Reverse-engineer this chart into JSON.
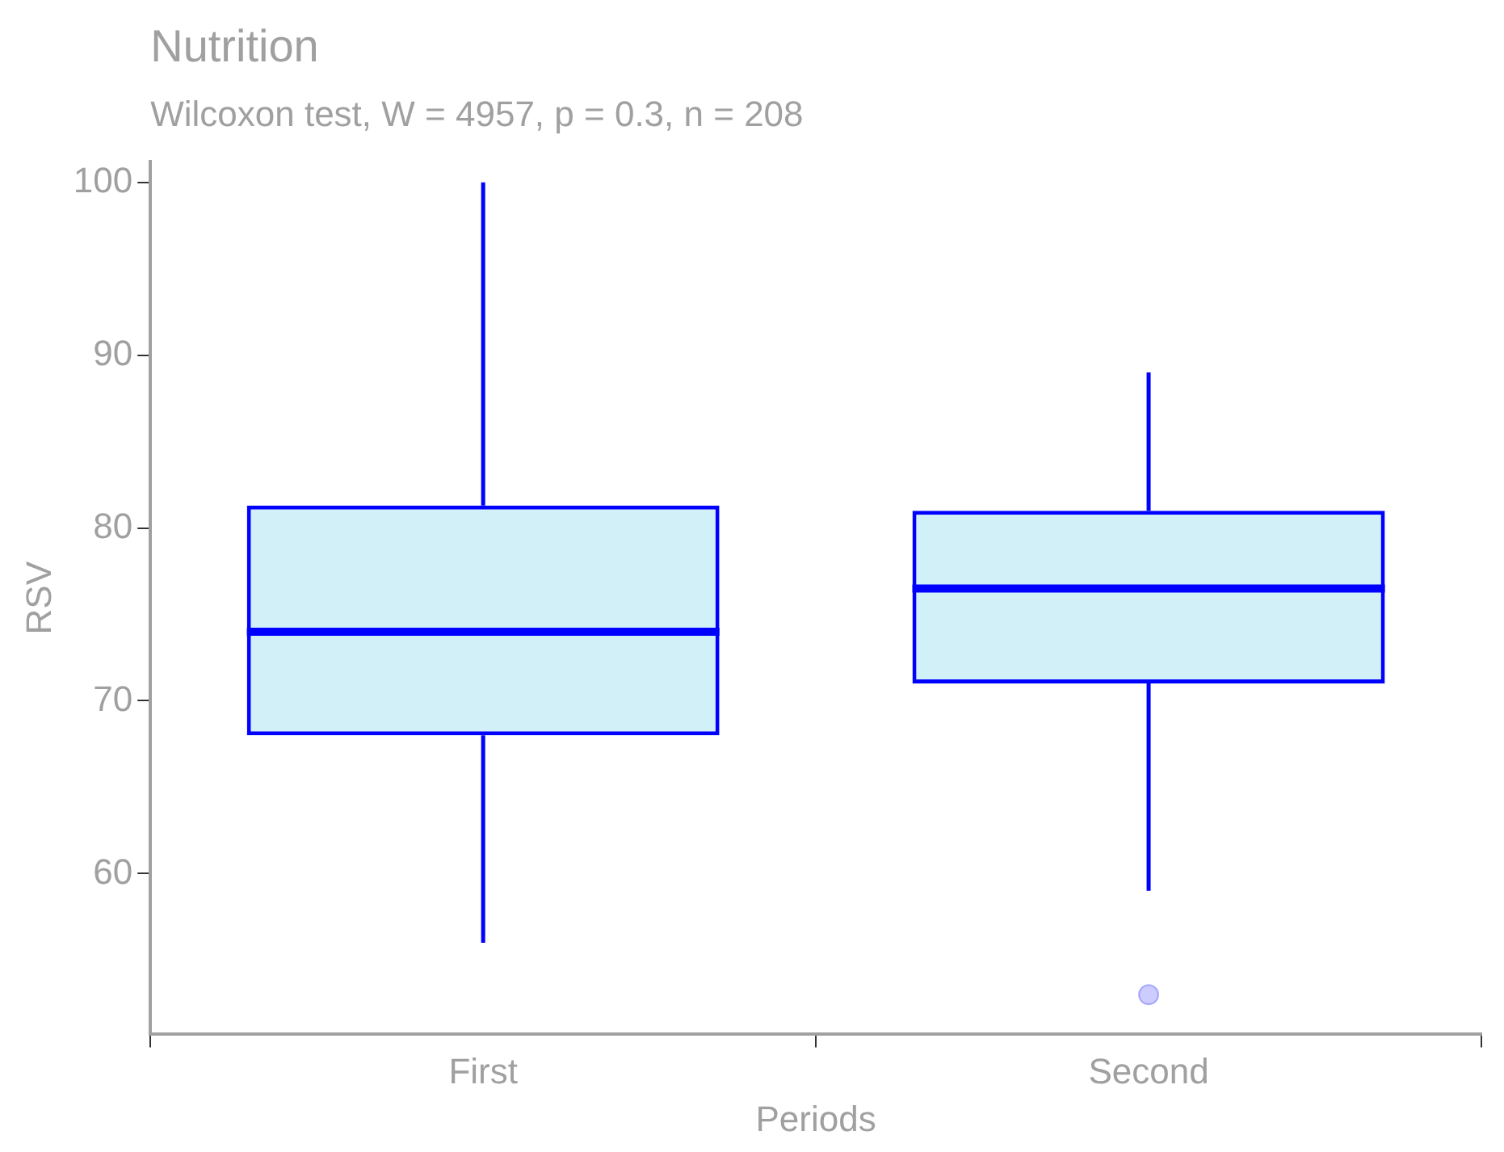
{
  "chart_data": {
    "type": "box",
    "title": "Nutrition",
    "subtitle": "Wilcoxon test, W = 4957, p = 0.3, n = 208",
    "xlabel": "Periods",
    "ylabel": "RSV",
    "categories": [
      "First",
      "Second"
    ],
    "series": [
      {
        "color": "#0000ff",
        "boxes": [
          {
            "low": 56,
            "q1": 68,
            "median": 74,
            "q3": 81.3,
            "high": 100
          },
          {
            "low": 59,
            "q1": 71,
            "median": 76.5,
            "q3": 81,
            "high": 89,
            "outliers": [
              53
            ]
          }
        ]
      }
    ],
    "ylim": [
      50.7,
      101.2
    ],
    "yticks": [
      60,
      70,
      80,
      90,
      100
    ]
  }
}
